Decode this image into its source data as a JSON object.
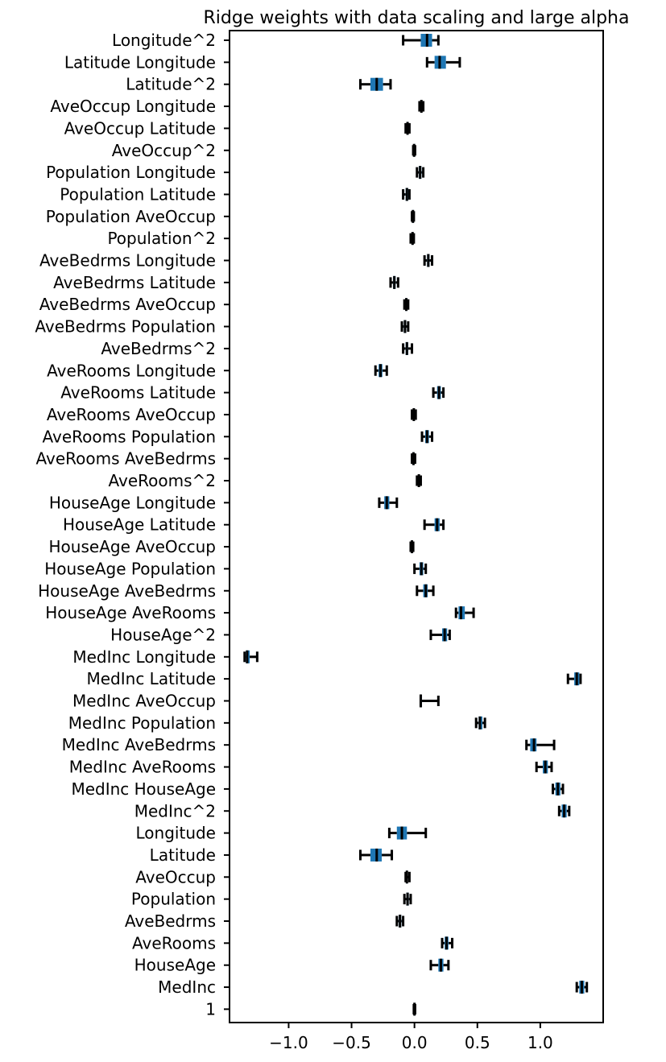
{
  "chart_data": {
    "type": "box",
    "orientation": "horizontal",
    "title": "Ridge weights with data scaling and large alpha",
    "xlabel": "",
    "ylabel": "",
    "xlim": [
      -1.47,
      1.5
    ],
    "x_ticks": [
      -1.0,
      -0.5,
      0.0,
      0.5,
      1.0
    ],
    "x_tick_labels": [
      "−1.0",
      "−0.5",
      "0.0",
      "0.5",
      "1.0"
    ],
    "grid": false,
    "legend": null,
    "box_color": "#1f77b4",
    "whisker_color": "#000000",
    "categories": [
      "Longitude^2",
      "Latitude Longitude",
      "Latitude^2",
      "AveOccup Longitude",
      "AveOccup Latitude",
      "AveOccup^2",
      "Population Longitude",
      "Population Latitude",
      "Population AveOccup",
      "Population^2",
      "AveBedrms Longitude",
      "AveBedrms Latitude",
      "AveBedrms AveOccup",
      "AveBedrms Population",
      "AveBedrms^2",
      "AveRooms Longitude",
      "AveRooms Latitude",
      "AveRooms AveOccup",
      "AveRooms Population",
      "AveRooms AveBedrms",
      "AveRooms^2",
      "HouseAge Longitude",
      "HouseAge Latitude",
      "HouseAge AveOccup",
      "HouseAge Population",
      "HouseAge AveBedrms",
      "HouseAge AveRooms",
      "HouseAge^2",
      "MedInc Longitude",
      "MedInc Latitude",
      "MedInc AveOccup",
      "MedInc Population",
      "MedInc AveBedrms",
      "MedInc AveRooms",
      "MedInc HouseAge",
      "MedInc^2",
      "Longitude",
      "Latitude",
      "AveOccup",
      "Population",
      "AveBedrms",
      "AveRooms",
      "HouseAge",
      "MedInc",
      "1"
    ],
    "boxes": [
      {
        "min": -0.09,
        "q1": 0.05,
        "median": 0.1,
        "q3": 0.14,
        "max": 0.19
      },
      {
        "min": 0.1,
        "q1": 0.16,
        "median": 0.2,
        "q3": 0.25,
        "max": 0.36
      },
      {
        "min": -0.43,
        "q1": -0.35,
        "median": -0.3,
        "q3": -0.25,
        "max": -0.19
      },
      {
        "min": 0.04,
        "q1": 0.05,
        "median": 0.055,
        "q3": 0.06,
        "max": 0.07
      },
      {
        "min": -0.07,
        "q1": -0.06,
        "median": -0.055,
        "q3": -0.05,
        "max": -0.04
      },
      {
        "min": -0.01,
        "q1": -0.005,
        "median": -0.003,
        "q3": 0.0,
        "max": 0.005
      },
      {
        "min": 0.02,
        "q1": 0.035,
        "median": 0.045,
        "q3": 0.055,
        "max": 0.07
      },
      {
        "min": -0.09,
        "q1": -0.07,
        "median": -0.06,
        "q3": -0.05,
        "max": -0.04
      },
      {
        "min": -0.02,
        "q1": -0.015,
        "median": -0.012,
        "q3": -0.009,
        "max": -0.005
      },
      {
        "min": -0.03,
        "q1": -0.02,
        "median": -0.015,
        "q3": -0.01,
        "max": -0.005
      },
      {
        "min": 0.08,
        "q1": 0.1,
        "median": 0.11,
        "q3": 0.12,
        "max": 0.14
      },
      {
        "min": -0.19,
        "q1": -0.17,
        "median": -0.16,
        "q3": -0.15,
        "max": -0.13
      },
      {
        "min": -0.08,
        "q1": -0.07,
        "median": -0.065,
        "q3": -0.06,
        "max": -0.05
      },
      {
        "min": -0.1,
        "q1": -0.085,
        "median": -0.075,
        "q3": -0.065,
        "max": -0.05
      },
      {
        "min": -0.09,
        "q1": -0.07,
        "median": -0.06,
        "q3": -0.05,
        "max": -0.02
      },
      {
        "min": -0.31,
        "q1": -0.285,
        "median": -0.27,
        "q3": -0.255,
        "max": -0.22
      },
      {
        "min": 0.15,
        "q1": 0.18,
        "median": 0.195,
        "q3": 0.21,
        "max": 0.23
      },
      {
        "min": -0.02,
        "q1": -0.01,
        "median": -0.005,
        "q3": 0.0,
        "max": 0.01
      },
      {
        "min": 0.06,
        "q1": 0.085,
        "median": 0.1,
        "q3": 0.115,
        "max": 0.14
      },
      {
        "min": -0.02,
        "q1": -0.012,
        "median": -0.008,
        "q3": -0.004,
        "max": 0.005
      },
      {
        "min": 0.02,
        "q1": 0.03,
        "median": 0.035,
        "q3": 0.04,
        "max": 0.05
      },
      {
        "min": -0.28,
        "q1": -0.24,
        "median": -0.22,
        "q3": -0.2,
        "max": -0.14
      },
      {
        "min": 0.08,
        "q1": 0.16,
        "median": 0.18,
        "q3": 0.2,
        "max": 0.23
      },
      {
        "min": -0.03,
        "q1": -0.025,
        "median": -0.02,
        "q3": -0.015,
        "max": -0.01
      },
      {
        "min": 0.0,
        "q1": 0.04,
        "median": 0.055,
        "q3": 0.07,
        "max": 0.09
      },
      {
        "min": 0.02,
        "q1": 0.07,
        "median": 0.09,
        "q3": 0.105,
        "max": 0.15
      },
      {
        "min": 0.33,
        "q1": 0.35,
        "median": 0.37,
        "q3": 0.4,
        "max": 0.47
      },
      {
        "min": 0.13,
        "q1": 0.22,
        "median": 0.24,
        "q3": 0.26,
        "max": 0.28
      },
      {
        "min": -1.35,
        "q1": -1.34,
        "median": -1.33,
        "q3": -1.31,
        "max": -1.25
      },
      {
        "min": 1.22,
        "q1": 1.27,
        "median": 1.29,
        "q3": 1.31,
        "max": 1.32
      },
      {
        "min": 0.05,
        "q1": 0.05,
        "median": 0.05,
        "q3": 0.06,
        "max": 0.19
      },
      {
        "min": 0.49,
        "q1": 0.51,
        "median": 0.52,
        "q3": 0.54,
        "max": 0.56
      },
      {
        "min": 0.89,
        "q1": 0.92,
        "median": 0.95,
        "q3": 0.97,
        "max": 1.11
      },
      {
        "min": 0.97,
        "q1": 1.02,
        "median": 1.04,
        "q3": 1.06,
        "max": 1.09
      },
      {
        "min": 1.1,
        "q1": 1.12,
        "median": 1.14,
        "q3": 1.16,
        "max": 1.18
      },
      {
        "min": 1.15,
        "q1": 1.17,
        "median": 1.19,
        "q3": 1.21,
        "max": 1.23
      },
      {
        "min": -0.2,
        "q1": -0.14,
        "median": -0.1,
        "q3": -0.06,
        "max": 0.09
      },
      {
        "min": -0.43,
        "q1": -0.35,
        "median": -0.3,
        "q3": -0.26,
        "max": -0.18
      },
      {
        "min": -0.07,
        "q1": -0.065,
        "median": -0.06,
        "q3": -0.055,
        "max": -0.04
      },
      {
        "min": -0.08,
        "q1": -0.065,
        "median": -0.055,
        "q3": -0.045,
        "max": -0.03
      },
      {
        "min": -0.14,
        "q1": -0.125,
        "median": -0.115,
        "q3": -0.105,
        "max": -0.09
      },
      {
        "min": 0.22,
        "q1": 0.24,
        "median": 0.255,
        "q3": 0.27,
        "max": 0.3
      },
      {
        "min": 0.13,
        "q1": 0.19,
        "median": 0.21,
        "q3": 0.23,
        "max": 0.27
      },
      {
        "min": 1.29,
        "q1": 1.31,
        "median": 1.33,
        "q3": 1.35,
        "max": 1.37
      },
      {
        "min": -0.005,
        "q1": -0.002,
        "median": 0.0,
        "q3": 0.002,
        "max": 0.005
      }
    ]
  }
}
